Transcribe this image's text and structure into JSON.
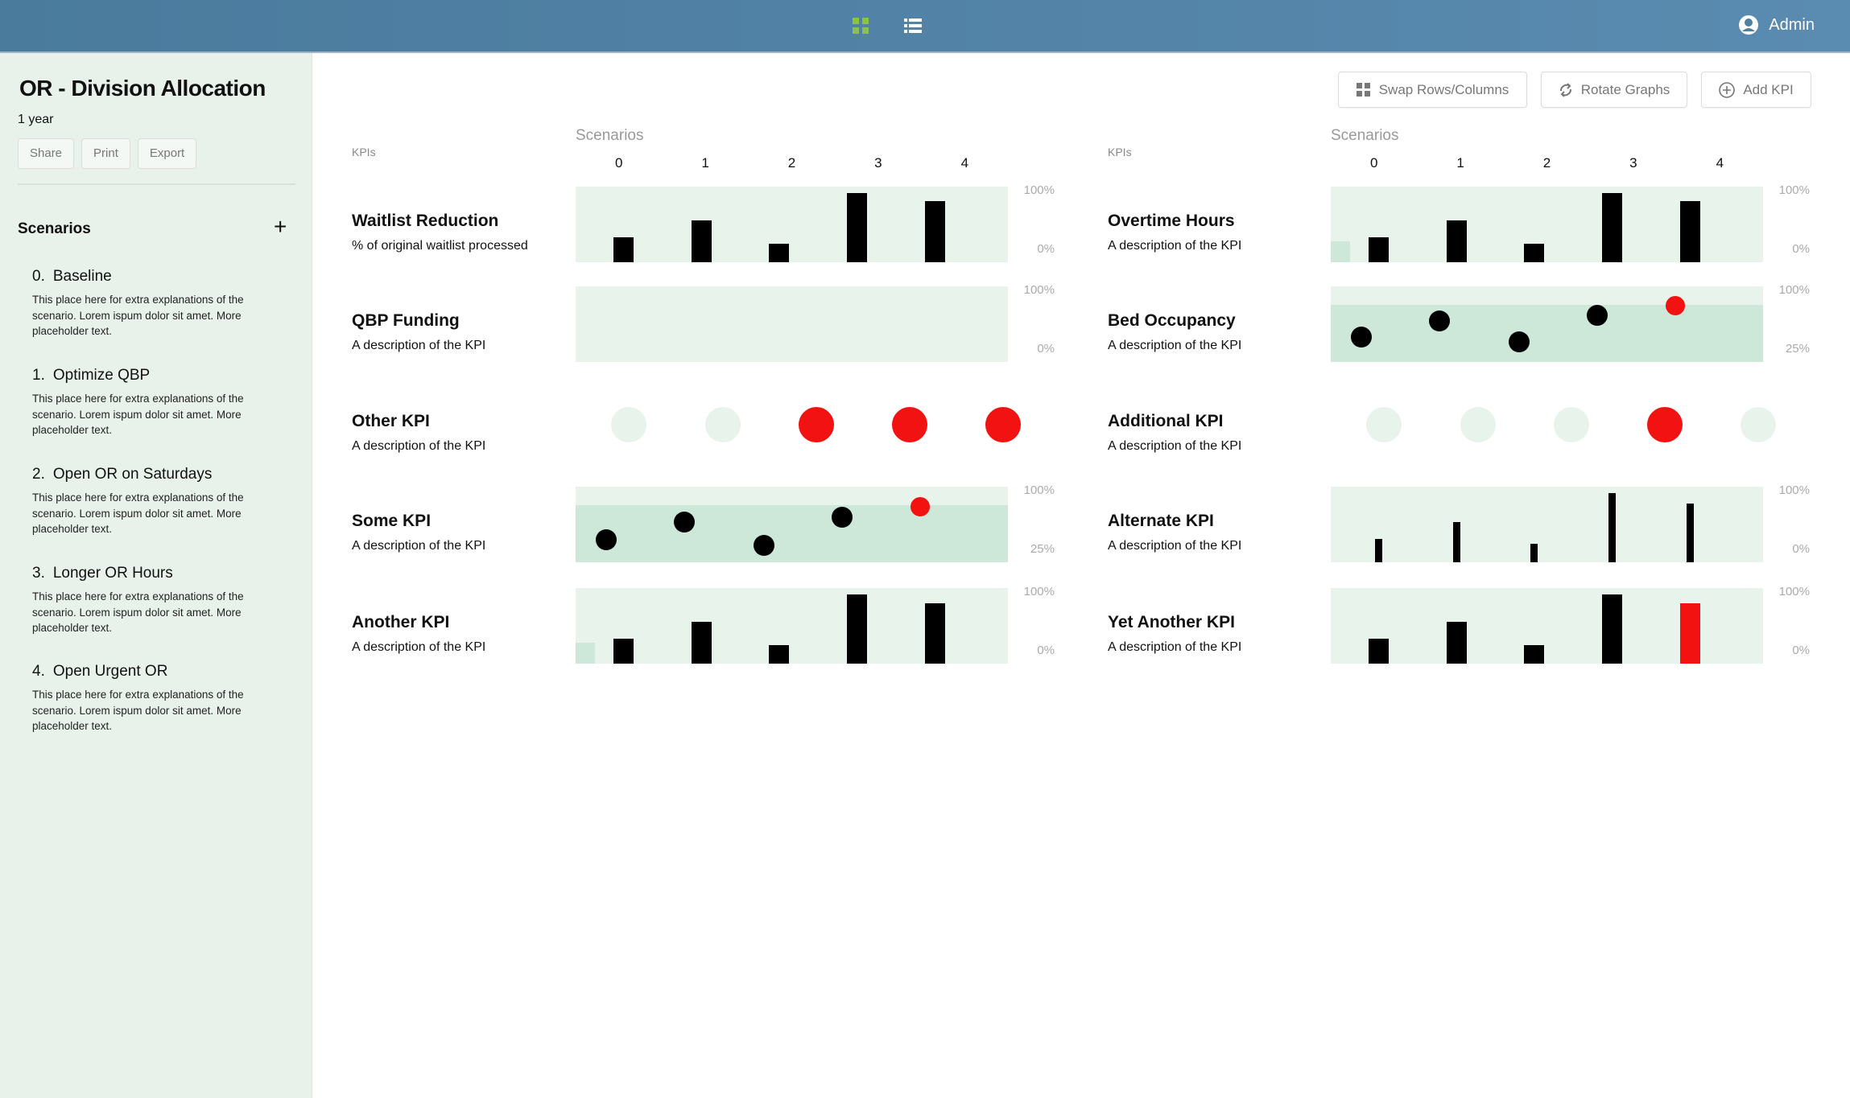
{
  "header": {
    "grid_view_icon": "grid-icon",
    "list_view_icon": "list-icon",
    "user_label": "Admin",
    "accent": "#8bc34a"
  },
  "sidebar": {
    "title": "OR - Division Allocation",
    "period": "1 year",
    "buttons": [
      "Share",
      "Print",
      "Export"
    ],
    "scenarios_heading": "Scenarios",
    "add_label": "+",
    "scenarios": [
      {
        "number": "0.",
        "name": "Baseline",
        "description": "This place here for extra explanations of the scenario. Lorem ispum dolor sit amet. More placeholder text."
      },
      {
        "number": "1.",
        "name": "Optimize QBP",
        "description": "This place here for extra explanations of the scenario. Lorem ispum dolor sit amet. More placeholder text."
      },
      {
        "number": "2.",
        "name": "Open OR on Saturdays",
        "description": "This place here for extra explanations of the scenario. Lorem ispum dolor sit amet. More placeholder text."
      },
      {
        "number": "3.",
        "name": "Longer OR Hours",
        "description": "This place here for extra explanations of the scenario. Lorem ispum dolor sit amet. More placeholder text."
      },
      {
        "number": "4.",
        "name": "Open Urgent OR",
        "description": "This place here for extra explanations of the scenario. Lorem ispum dolor sit amet. More placeholder text."
      }
    ]
  },
  "toolbar": {
    "swap_label": "Swap Rows/Columns",
    "rotate_label": "Rotate Graphs",
    "add_kpi_label": "Add KPI"
  },
  "colors": {
    "chart_bg": "#e8f3ec",
    "band": "#cde8d9",
    "bar": "#000000",
    "highlight": "#f31212",
    "inactive": "#e8f3ec"
  },
  "groups": [
    {
      "kpis_label": "KPIs",
      "scenarios_label": "Scenarios",
      "columns": [
        "0",
        "1",
        "2",
        "3",
        "4"
      ],
      "rows": [
        {
          "name": "Waitlist Reduction",
          "description": "% of original waitlist processed",
          "chart": {
            "type": "bar",
            "axis": [
              "100%",
              "0%"
            ],
            "values": [
              33,
              55,
              25,
              92,
              81
            ],
            "highlight": []
          }
        },
        {
          "name": "QBP Funding",
          "description": "A description of the KPI",
          "chart": {
            "type": "empty",
            "axis": [
              "100%",
              "0%"
            ]
          }
        },
        {
          "name": "Other KPI",
          "description": "A description of the KPI",
          "chart": {
            "type": "status",
            "status": [
              false,
              false,
              true,
              true,
              true
            ]
          }
        },
        {
          "name": "Some KPI",
          "description": "A description of the KPI",
          "chart": {
            "type": "dot",
            "axis": [
              "100%",
              "25%"
            ],
            "ylim": [
              25,
              100
            ],
            "band_top": 82,
            "values": [
              47,
              65,
              42,
              70,
              80
            ],
            "highlight": [
              4
            ]
          }
        },
        {
          "name": "Another KPI",
          "description": "A description of the KPI",
          "chart": {
            "type": "bar",
            "axis": [
              "100%",
              "0%"
            ],
            "values": [
              33,
              55,
              25,
              92,
              80
            ],
            "baseline": 28,
            "highlight": []
          }
        }
      ]
    },
    {
      "kpis_label": "KPIs",
      "scenarios_label": "Scenarios",
      "columns": [
        "0",
        "1",
        "2",
        "3",
        "4"
      ],
      "rows": [
        {
          "name": "Overtime Hours",
          "description": "A description of the KPI",
          "chart": {
            "type": "bar",
            "axis": [
              "100%",
              "0%"
            ],
            "values": [
              33,
              55,
              25,
              92,
              81
            ],
            "baseline": 28,
            "highlight": []
          }
        },
        {
          "name": "Bed Occupancy",
          "description": "A description of the KPI",
          "chart": {
            "type": "dot",
            "axis": [
              "100%",
              "25%"
            ],
            "ylim": [
              25,
              100
            ],
            "band_top": 82,
            "values": [
              50,
              66,
              45,
              71,
              81
            ],
            "highlight": [
              4
            ]
          }
        },
        {
          "name": "Additional KPI",
          "description": "A description of the KPI",
          "chart": {
            "type": "status",
            "status": [
              false,
              false,
              false,
              true,
              false
            ]
          }
        },
        {
          "name": "Alternate KPI",
          "description": "A description of the KPI",
          "chart": {
            "type": "thinbar",
            "axis": [
              "100%",
              "0%"
            ],
            "values": [
              31,
              53,
              25,
              91,
              78
            ],
            "highlight": []
          }
        },
        {
          "name": "Yet Another KPI",
          "description": "A description of the KPI",
          "chart": {
            "type": "bar",
            "axis": [
              "100%",
              "0%"
            ],
            "values": [
              33,
              55,
              25,
              92,
              80
            ],
            "highlight": [
              4
            ]
          }
        }
      ]
    }
  ]
}
